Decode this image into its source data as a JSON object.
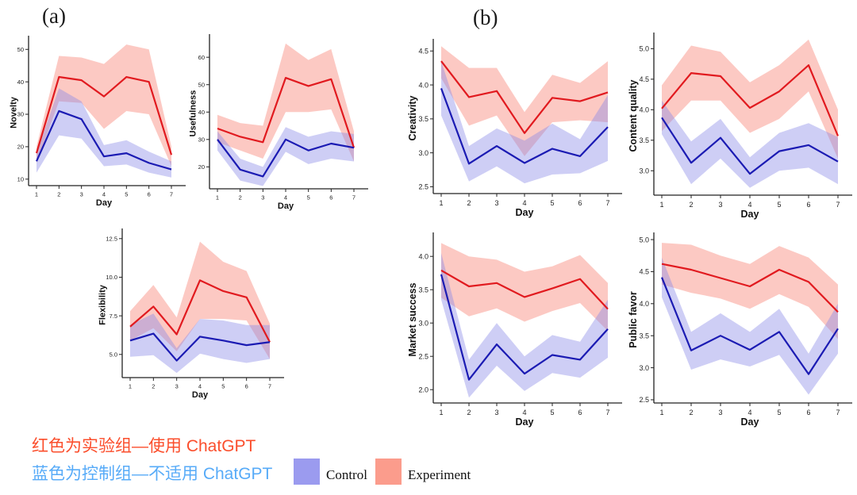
{
  "panels": {
    "a_label": "(a)",
    "b_label": "(b)"
  },
  "captions": {
    "red_line": "红色为实验组—使用 ChatGPT",
    "blue_line": "蓝色为控制组—不适用 ChatGPT"
  },
  "legend": {
    "control_label": "Control",
    "experiment_label": "Experiment"
  },
  "colors": {
    "experiment_line": "#e11a1f",
    "experiment_band": "#f87f70",
    "control_line": "#1b1bb3",
    "control_band": "#8b8be8",
    "legend_control_swatch": "#9b9bef",
    "legend_experiment_swatch": "#fb9c8c",
    "caption_red": "#fb4e2c",
    "caption_blue": "#57abf8",
    "axis": "#222222"
  },
  "chart_data": [
    {
      "id": "novelty",
      "panel": "a",
      "type": "line",
      "title": "",
      "ylabel": "Novelty",
      "xlabel": "Day",
      "x": [
        1,
        2,
        3,
        4,
        5,
        6,
        7
      ],
      "yticks": [
        "10",
        "20",
        "30",
        "40",
        "50"
      ],
      "ylim": [
        8,
        53
      ],
      "series": [
        {
          "name": "Experiment",
          "key": "experiment",
          "values": [
            18,
            41.5,
            40.5,
            35.5,
            41.5,
            40,
            17.5
          ],
          "upper": [
            20,
            48,
            47.5,
            45.5,
            51.5,
            50,
            20
          ],
          "lower": [
            15,
            34,
            33.5,
            25.5,
            31,
            30,
            14
          ]
        },
        {
          "name": "Control",
          "key": "control",
          "values": [
            15.5,
            31,
            28.5,
            17,
            18,
            15,
            13
          ],
          "upper": [
            18,
            38,
            34,
            20.5,
            22,
            18.5,
            15.5
          ],
          "lower": [
            12,
            23.5,
            22.5,
            14,
            14.5,
            12,
            10.5
          ]
        }
      ]
    },
    {
      "id": "usefulness",
      "panel": "a",
      "type": "line",
      "title": "",
      "ylabel": "Usefulness",
      "xlabel": "Day",
      "x": [
        1,
        2,
        3,
        4,
        5,
        6,
        7
      ],
      "yticks": [
        "20",
        "30",
        "40",
        "50",
        "60"
      ],
      "ylim": [
        12,
        67
      ],
      "series": [
        {
          "name": "Experiment",
          "key": "experiment",
          "values": [
            34,
            31,
            29,
            52.5,
            49.5,
            52,
            27
          ],
          "upper": [
            39,
            36,
            35,
            65,
            59,
            63,
            33
          ],
          "lower": [
            29,
            26,
            23,
            40,
            40,
            41,
            22
          ]
        },
        {
          "name": "Control",
          "key": "control",
          "values": [
            30,
            19,
            16.5,
            30,
            26,
            28.5,
            27
          ],
          "upper": [
            33,
            23,
            20,
            34.5,
            31,
            33,
            32
          ],
          "lower": [
            26,
            15,
            13,
            25.5,
            21,
            23,
            22
          ]
        }
      ]
    },
    {
      "id": "flexibility",
      "panel": "a",
      "type": "line",
      "title": "",
      "ylabel": "Flexibility",
      "xlabel": "Day",
      "x": [
        1,
        2,
        3,
        4,
        5,
        6,
        7
      ],
      "yticks": [
        "5.0",
        "7.5",
        "10.0",
        "12.5"
      ],
      "ylim": [
        3.5,
        12.9
      ],
      "series": [
        {
          "name": "Experiment",
          "key": "experiment",
          "values": [
            6.8,
            8.1,
            6.3,
            9.8,
            9.1,
            8.7,
            5.8
          ],
          "upper": [
            7.8,
            9.5,
            7.4,
            12.3,
            11.0,
            10.4,
            7.0
          ],
          "lower": [
            5.9,
            6.7,
            5.2,
            7.3,
            7.3,
            7.2,
            4.7
          ]
        },
        {
          "name": "Control",
          "key": "control",
          "values": [
            5.9,
            6.35,
            4.6,
            6.15,
            5.9,
            5.6,
            5.8
          ],
          "upper": [
            6.9,
            7.65,
            5.4,
            7.3,
            7.2,
            6.9,
            6.9
          ],
          "lower": [
            4.85,
            4.95,
            3.8,
            5.05,
            4.7,
            4.45,
            4.7
          ]
        }
      ]
    },
    {
      "id": "creativity",
      "panel": "b",
      "type": "line",
      "title": "",
      "ylabel": "Creativity",
      "xlabel": "Day",
      "x": [
        1,
        2,
        3,
        4,
        5,
        6,
        7
      ],
      "yticks": [
        "2.5",
        "3.0",
        "3.5",
        "4.0",
        "4.5"
      ],
      "ylim": [
        2.4,
        4.62
      ],
      "series": [
        {
          "name": "Experiment",
          "key": "experiment",
          "values": [
            4.35,
            3.82,
            3.91,
            3.29,
            3.81,
            3.76,
            3.89
          ],
          "upper": [
            4.57,
            4.25,
            4.25,
            3.6,
            4.15,
            4.03,
            4.35
          ],
          "lower": [
            4.1,
            3.4,
            3.55,
            2.95,
            3.45,
            3.48,
            3.45
          ]
        },
        {
          "name": "Control",
          "key": "control",
          "values": [
            3.95,
            2.84,
            3.1,
            2.85,
            3.06,
            2.95,
            3.38
          ],
          "upper": [
            4.35,
            3.1,
            3.36,
            3.18,
            3.43,
            3.2,
            3.85
          ],
          "lower": [
            3.55,
            2.58,
            2.8,
            2.55,
            2.68,
            2.7,
            2.88
          ]
        }
      ]
    },
    {
      "id": "content-quality",
      "panel": "b",
      "type": "line",
      "title": "",
      "ylabel": "Content quality",
      "xlabel": "Day",
      "x": [
        1,
        2,
        3,
        4,
        5,
        6,
        7
      ],
      "yticks": [
        "3.0",
        "3.5",
        "4.0",
        "4.5",
        "5.0"
      ],
      "ylim": [
        2.6,
        5.2
      ],
      "series": [
        {
          "name": "Experiment",
          "key": "experiment",
          "values": [
            4.02,
            4.6,
            4.55,
            4.03,
            4.3,
            4.73,
            3.57
          ],
          "upper": [
            4.4,
            5.05,
            4.95,
            4.45,
            4.73,
            5.15,
            4.0
          ],
          "lower": [
            3.65,
            4.15,
            4.15,
            3.62,
            3.85,
            4.3,
            3.2
          ]
        },
        {
          "name": "Control",
          "key": "control",
          "values": [
            3.87,
            3.13,
            3.54,
            2.95,
            3.32,
            3.42,
            3.15
          ],
          "upper": [
            4.15,
            3.48,
            3.85,
            3.22,
            3.62,
            3.78,
            3.55
          ],
          "lower": [
            3.6,
            2.78,
            3.2,
            2.72,
            3.0,
            3.05,
            2.78
          ]
        }
      ]
    },
    {
      "id": "market-success",
      "panel": "b",
      "type": "line",
      "title": "",
      "ylabel": "Market success",
      "xlabel": "Day",
      "x": [
        1,
        2,
        3,
        4,
        5,
        6,
        7
      ],
      "yticks": [
        "2.0",
        "2.5",
        "3.0",
        "3.5",
        "4.0"
      ],
      "ylim": [
        1.8,
        4.3
      ],
      "series": [
        {
          "name": "Experiment",
          "key": "experiment",
          "values": [
            3.79,
            3.55,
            3.6,
            3.39,
            3.52,
            3.66,
            3.21
          ],
          "upper": [
            4.2,
            4.0,
            3.95,
            3.77,
            3.85,
            4.02,
            3.6
          ],
          "lower": [
            3.38,
            3.1,
            3.22,
            3.02,
            3.18,
            3.3,
            2.88
          ]
        },
        {
          "name": "Control",
          "key": "control",
          "values": [
            3.73,
            2.15,
            2.68,
            2.24,
            2.52,
            2.45,
            2.91
          ],
          "upper": [
            4.05,
            2.45,
            3.0,
            2.5,
            2.82,
            2.72,
            3.35
          ],
          "lower": [
            3.35,
            1.88,
            2.36,
            1.98,
            2.25,
            2.18,
            2.48
          ]
        }
      ]
    },
    {
      "id": "public-favor",
      "panel": "b",
      "type": "line",
      "title": "",
      "ylabel": "Public favor",
      "xlabel": "Day",
      "x": [
        1,
        2,
        3,
        4,
        5,
        6,
        7
      ],
      "yticks": [
        "2.5",
        "3.0",
        "3.5",
        "4.0",
        "4.5",
        "5.0"
      ],
      "ylim": [
        2.45,
        5.05
      ],
      "series": [
        {
          "name": "Experiment",
          "key": "experiment",
          "values": [
            4.62,
            4.53,
            4.4,
            4.27,
            4.53,
            4.34,
            3.87
          ],
          "upper": [
            4.95,
            4.92,
            4.75,
            4.62,
            4.9,
            4.72,
            4.3
          ],
          "lower": [
            4.3,
            4.17,
            4.08,
            3.92,
            4.15,
            3.95,
            3.45
          ]
        },
        {
          "name": "Control",
          "key": "control",
          "values": [
            4.41,
            3.27,
            3.5,
            3.28,
            3.56,
            2.9,
            3.61
          ],
          "upper": [
            4.72,
            3.56,
            3.85,
            3.56,
            3.92,
            3.22,
            4.0
          ],
          "lower": [
            4.1,
            2.97,
            3.13,
            3.02,
            3.2,
            2.58,
            3.22
          ]
        }
      ]
    }
  ]
}
